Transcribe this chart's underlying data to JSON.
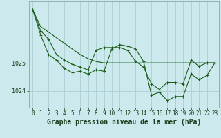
{
  "background_color": "#cce9ed",
  "grid_color": "#aacfd4",
  "line_color": "#1a5c1a",
  "xlabel": "Graphe pression niveau de la mer (hPa)",
  "xlabel_fontsize": 7,
  "tick_fontsize": 5.5,
  "ytick_labels": [
    1024,
    1025
  ],
  "ylim": [
    1023.4,
    1027.2
  ],
  "xlim": [
    -0.5,
    23.5
  ],
  "xtick_labels": [
    0,
    1,
    2,
    3,
    4,
    5,
    6,
    7,
    8,
    9,
    10,
    11,
    12,
    13,
    14,
    15,
    16,
    17,
    18,
    19,
    20,
    21,
    22,
    23
  ],
  "series1_x": [
    0,
    1,
    2,
    3,
    4,
    5,
    6,
    7,
    8,
    9,
    10,
    11,
    12,
    13,
    14,
    15,
    16,
    17,
    18,
    19,
    20,
    21,
    22,
    23
  ],
  "series1_y": [
    1026.9,
    1026.3,
    1026.1,
    1025.9,
    1025.7,
    1025.5,
    1025.3,
    1025.15,
    1025.05,
    1025.0,
    1025.0,
    1025.0,
    1025.0,
    1025.0,
    1025.0,
    1025.0,
    1025.0,
    1025.0,
    1025.0,
    1025.0,
    1025.0,
    1025.0,
    1025.0,
    1025.0
  ],
  "series2_x": [
    0,
    1,
    2,
    3,
    4,
    5,
    6,
    7,
    8,
    9,
    10,
    11,
    12,
    13,
    14,
    15,
    16,
    17,
    18,
    19,
    20,
    21,
    22,
    23
  ],
  "series2_y": [
    1026.9,
    1026.0,
    1025.3,
    1025.1,
    1024.8,
    1024.65,
    1024.7,
    1024.6,
    1024.75,
    1024.7,
    1025.5,
    1025.65,
    1025.6,
    1025.5,
    1025.05,
    1023.85,
    1023.95,
    1023.65,
    1023.8,
    1023.8,
    1024.6,
    1024.4,
    1024.55,
    1025.0
  ],
  "series3_x": [
    0,
    1,
    2,
    3,
    4,
    5,
    6,
    7,
    8,
    9,
    10,
    11,
    12,
    13,
    14,
    15,
    16,
    17,
    18,
    19,
    20,
    21,
    22,
    23
  ],
  "series3_y": [
    1026.9,
    1026.15,
    1025.85,
    1025.3,
    1025.1,
    1024.95,
    1024.85,
    1024.75,
    1025.45,
    1025.55,
    1025.55,
    1025.55,
    1025.45,
    1025.05,
    1024.85,
    1024.25,
    1024.05,
    1024.3,
    1024.3,
    1024.25,
    1025.1,
    1024.88,
    1025.0,
    1025.0
  ]
}
